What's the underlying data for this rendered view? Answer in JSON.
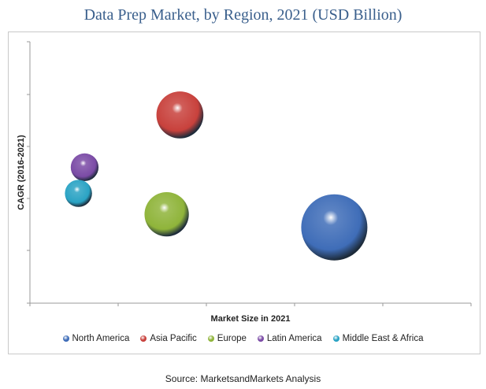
{
  "chart_data": {
    "type": "scatter",
    "title": "Data Prep Market, by Region, 2021 (USD Billion)",
    "xlabel": "Market Size in 2021",
    "ylabel": "CAGR (2016-2021)",
    "xlim": [
      0,
      5
    ],
    "ylim": [
      0,
      5
    ],
    "grid": false,
    "legend_position": "bottom",
    "series": [
      {
        "name": "North America",
        "x": 3.45,
        "y": 1.45,
        "size": 1.0,
        "color": "#3f6db8"
      },
      {
        "name": "Asia Pacific",
        "x": 1.7,
        "y": 3.6,
        "size": 0.71,
        "color": "#c8413c"
      },
      {
        "name": "Europe",
        "x": 1.55,
        "y": 1.7,
        "size": 0.67,
        "color": "#8fb43a"
      },
      {
        "name": "Latin America",
        "x": 0.62,
        "y": 2.6,
        "size": 0.42,
        "color": "#7b4ba6"
      },
      {
        "name": "Middle East & Africa",
        "x": 0.55,
        "y": 2.1,
        "size": 0.41,
        "color": "#2aa3c4"
      }
    ]
  },
  "source": "Source: MarketsandMarkets Analysis"
}
